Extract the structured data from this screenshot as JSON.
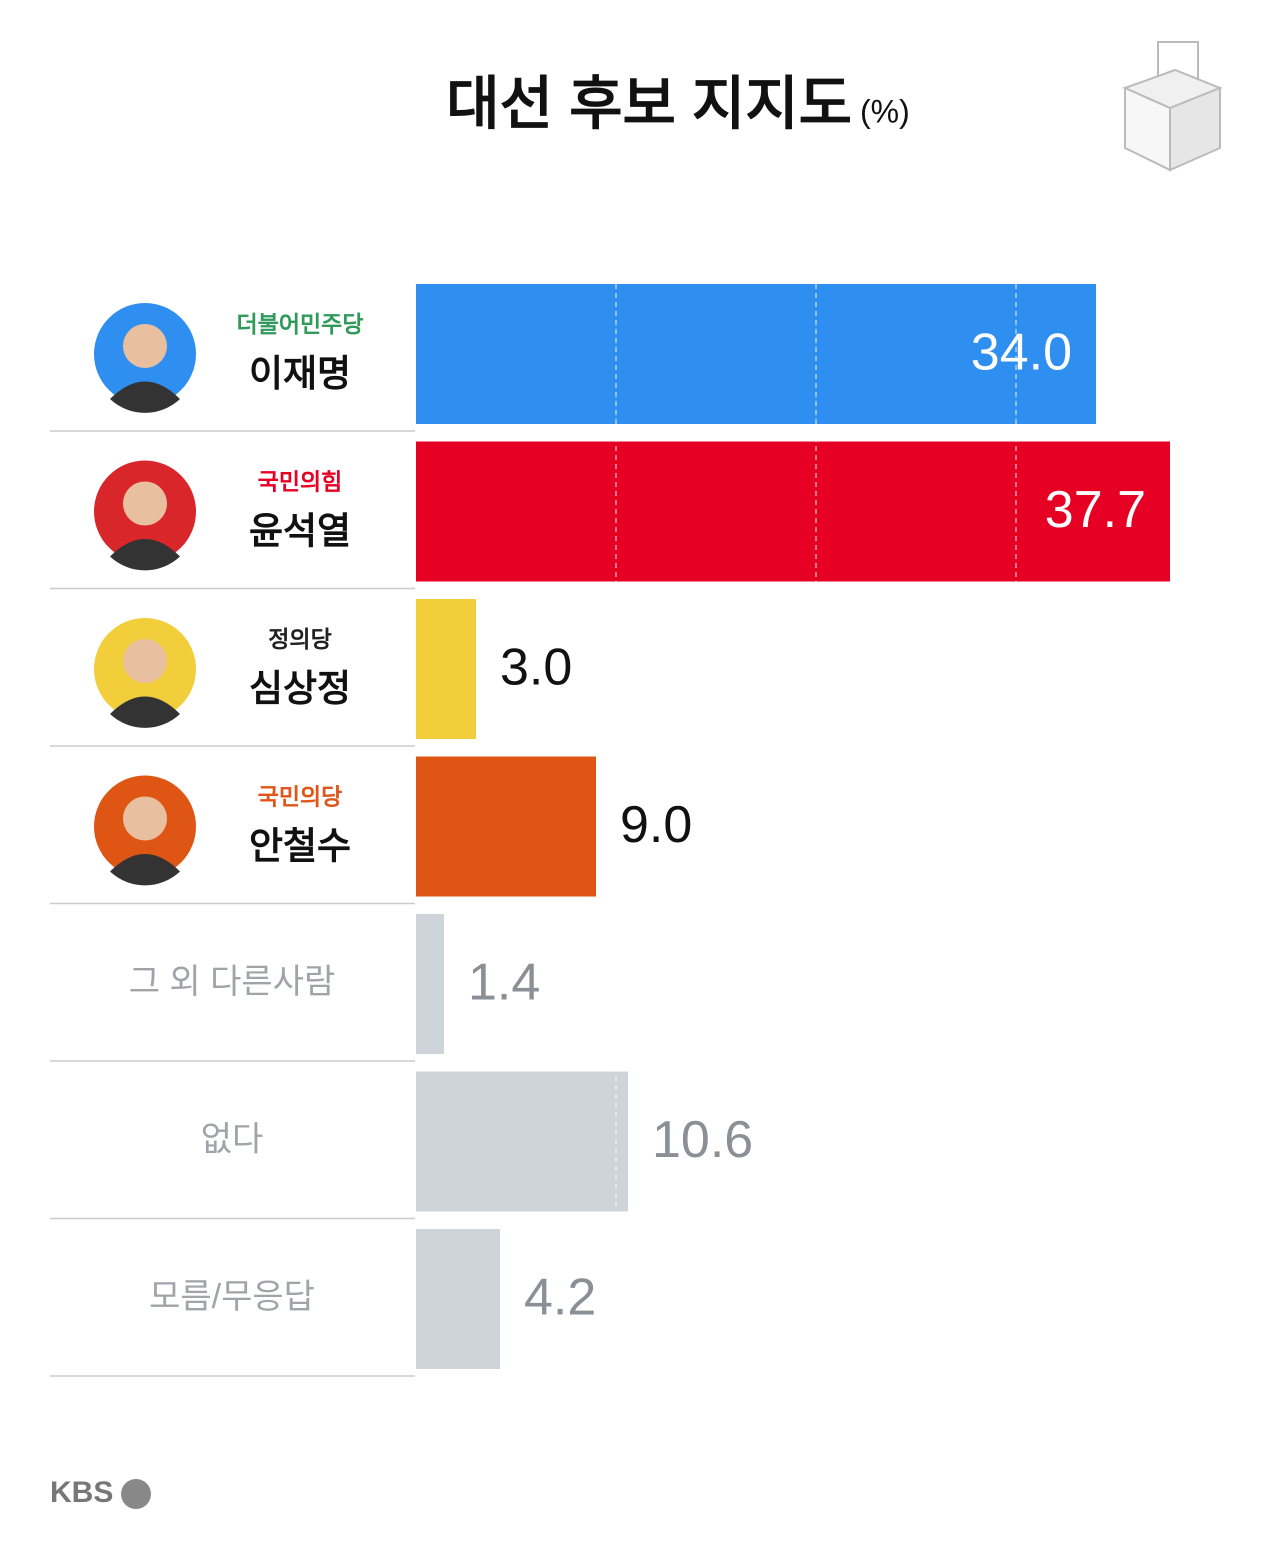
{
  "chart_data": {
    "type": "bar",
    "orientation": "horizontal",
    "title": "대선 후보 지지도",
    "unit": "(%)",
    "categories": [
      "이재명",
      "윤석열",
      "심상정",
      "안철수",
      "그 외 다른사람",
      "없다",
      "모름/무응답"
    ],
    "parties": [
      "더불어민주당",
      "국민의힘",
      "정의당",
      "국민의당",
      null,
      null,
      null
    ],
    "party_colors": [
      "#2f9a5a",
      "#e60023",
      "#222222",
      "#e0561a",
      null,
      null,
      null
    ],
    "values": [
      34.0,
      37.7,
      3.0,
      9.0,
      1.4,
      10.6,
      4.2
    ],
    "value_labels": [
      "34.0",
      "37.7",
      "3.0",
      "9.0",
      "1.4",
      "10.6",
      "4.2"
    ],
    "colors": [
      "#2f8ff0",
      "#e60023",
      "#f2cf3a",
      "#df5614",
      "#cfd4da",
      "#cfd4da",
      "#cfd4da"
    ],
    "xlim": [
      0,
      43.2
    ],
    "xticks": [
      10,
      20,
      30
    ],
    "grid": true,
    "source": "KBS"
  }
}
